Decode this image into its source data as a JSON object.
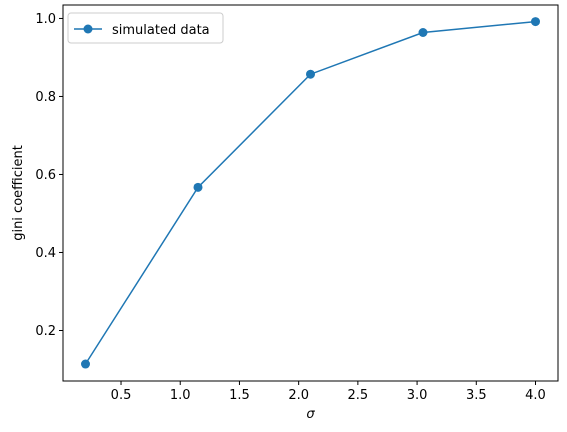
{
  "chart_data": {
    "type": "line",
    "title": "",
    "xlabel": "σ",
    "ylabel": "gini coefficient",
    "xlim": [
      0.01,
      4.19
    ],
    "ylim": [
      0.0705,
      1.0345
    ],
    "x_ticks": [
      0.5,
      1.0,
      1.5,
      2.0,
      2.5,
      3.0,
      3.5,
      4.0
    ],
    "x_tick_labels": [
      "0.5",
      "1.0",
      "1.5",
      "2.0",
      "2.5",
      "3.0",
      "3.5",
      "4.0"
    ],
    "y_ticks": [
      0.2,
      0.4,
      0.6,
      0.8,
      1.0
    ],
    "y_tick_labels": [
      "0.2",
      "0.4",
      "0.6",
      "0.8",
      "1.0"
    ],
    "grid": false,
    "legend_placement": "upper-left",
    "series": [
      {
        "name": "simulated data",
        "color": "#1f77b4",
        "marker": "circle",
        "x": [
          0.2,
          1.15,
          2.1,
          3.05,
          4.0
        ],
        "y": [
          0.114,
          0.567,
          0.857,
          0.964,
          0.992
        ]
      }
    ]
  }
}
